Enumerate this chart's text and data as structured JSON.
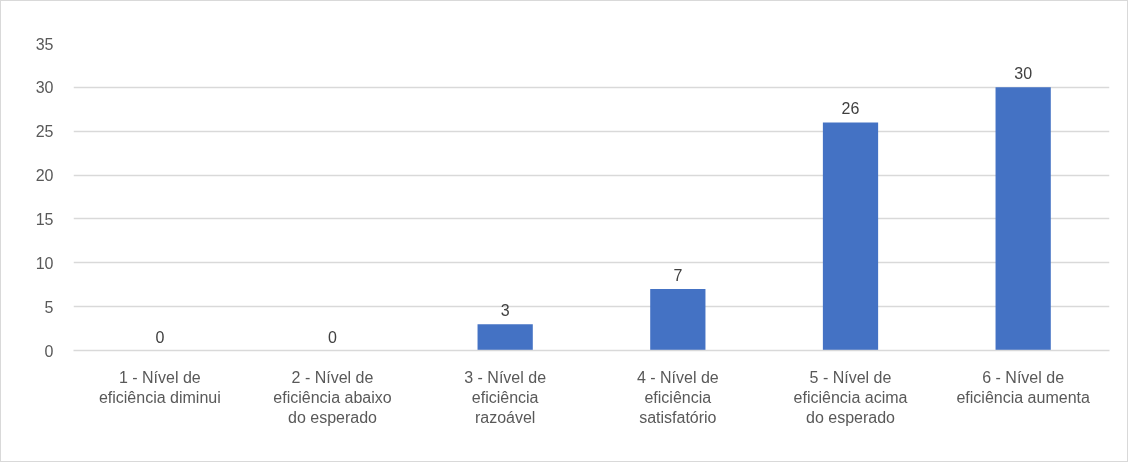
{
  "chart_data": {
    "type": "bar",
    "categories": [
      "1 - Nível de eficiência diminui",
      "2 - Nível de eficiência abaixo do esperado",
      "3 - Nível de eficiência razoável",
      "4 - Nível de eficiência satisfatório",
      "5 - Nível de eficiência acima do esperado",
      "6 - Nível de eficiência aumenta"
    ],
    "values": [
      0,
      0,
      3,
      7,
      26,
      30
    ],
    "color": "#4472c4",
    "ylim": [
      0,
      35
    ],
    "yticks": [
      0,
      5,
      10,
      15,
      20,
      25,
      30,
      35
    ],
    "grid": "y",
    "data_labels": true
  }
}
